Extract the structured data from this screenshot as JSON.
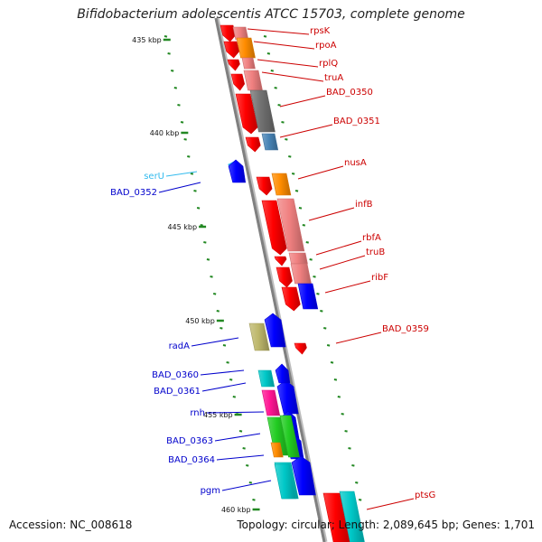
{
  "title": "Bifidobacterium adolescentis ATCC 15703, complete genome",
  "footer": {
    "accession": "Accession: NC_008618",
    "stats": "Topology: circular; Length: 2,089,645 bp; Genes: 1,701"
  },
  "scale_labels": [
    "435 kbp",
    "440 kbp",
    "445 kbp",
    "450 kbp",
    "455 kbp",
    "460 kbp"
  ],
  "colors": {
    "backbone": "#808080",
    "label_red": "#cc0000",
    "label_blue": "#0000cc",
    "label_cyan": "#33bbee",
    "tick_green": "#228822",
    "gene_red": "#ff0000",
    "gene_pink": "#f08080",
    "gene_orange": "#ff8c00",
    "gene_gray": "#707070",
    "gene_steelblue": "#4682b4",
    "gene_blue": "#0000ff",
    "gene_khaki": "#bdb76b",
    "gene_cyan": "#00c8c8",
    "gene_magenta": "#ff1493",
    "gene_green": "#22cc22"
  },
  "genes_forward": [
    {
      "name": "rpsK",
      "color": "gene_pink"
    },
    {
      "name": "rpoA",
      "color": "gene_orange"
    },
    {
      "name": "rplQ",
      "color": "gene_pink"
    },
    {
      "name": "truA",
      "color": "gene_pink"
    },
    {
      "name": "BAD_0350",
      "color": "gene_gray"
    },
    {
      "name": "BAD_0351",
      "color": "gene_steelblue"
    },
    {
      "name": "nusA",
      "color": "gene_orange"
    },
    {
      "name": "infB",
      "color": "gene_pink"
    },
    {
      "name": "rbfA",
      "color": "gene_pink"
    },
    {
      "name": "truB",
      "color": "gene_pink"
    },
    {
      "name": "ribF",
      "color": "gene_blue"
    },
    {
      "name": "BAD_0359",
      "color": "gene_red"
    },
    {
      "name": "ptsG",
      "color": "gene_cyan"
    }
  ],
  "genes_reverse": [
    {
      "name": "serU",
      "color": "label_cyan"
    },
    {
      "name": "BAD_0352",
      "color": "gene_blue"
    },
    {
      "name": "radA",
      "color": "gene_khaki"
    },
    {
      "name": "BAD_0360",
      "color": "gene_cyan"
    },
    {
      "name": "BAD_0361",
      "color": "gene_magenta"
    },
    {
      "name": "rnh",
      "color": "gene_blue"
    },
    {
      "name": "BAD_0363",
      "color": "gene_green"
    },
    {
      "name": "BAD_0364",
      "color": "gene_orange"
    },
    {
      "name": "pgm",
      "color": "gene_cyan"
    }
  ]
}
